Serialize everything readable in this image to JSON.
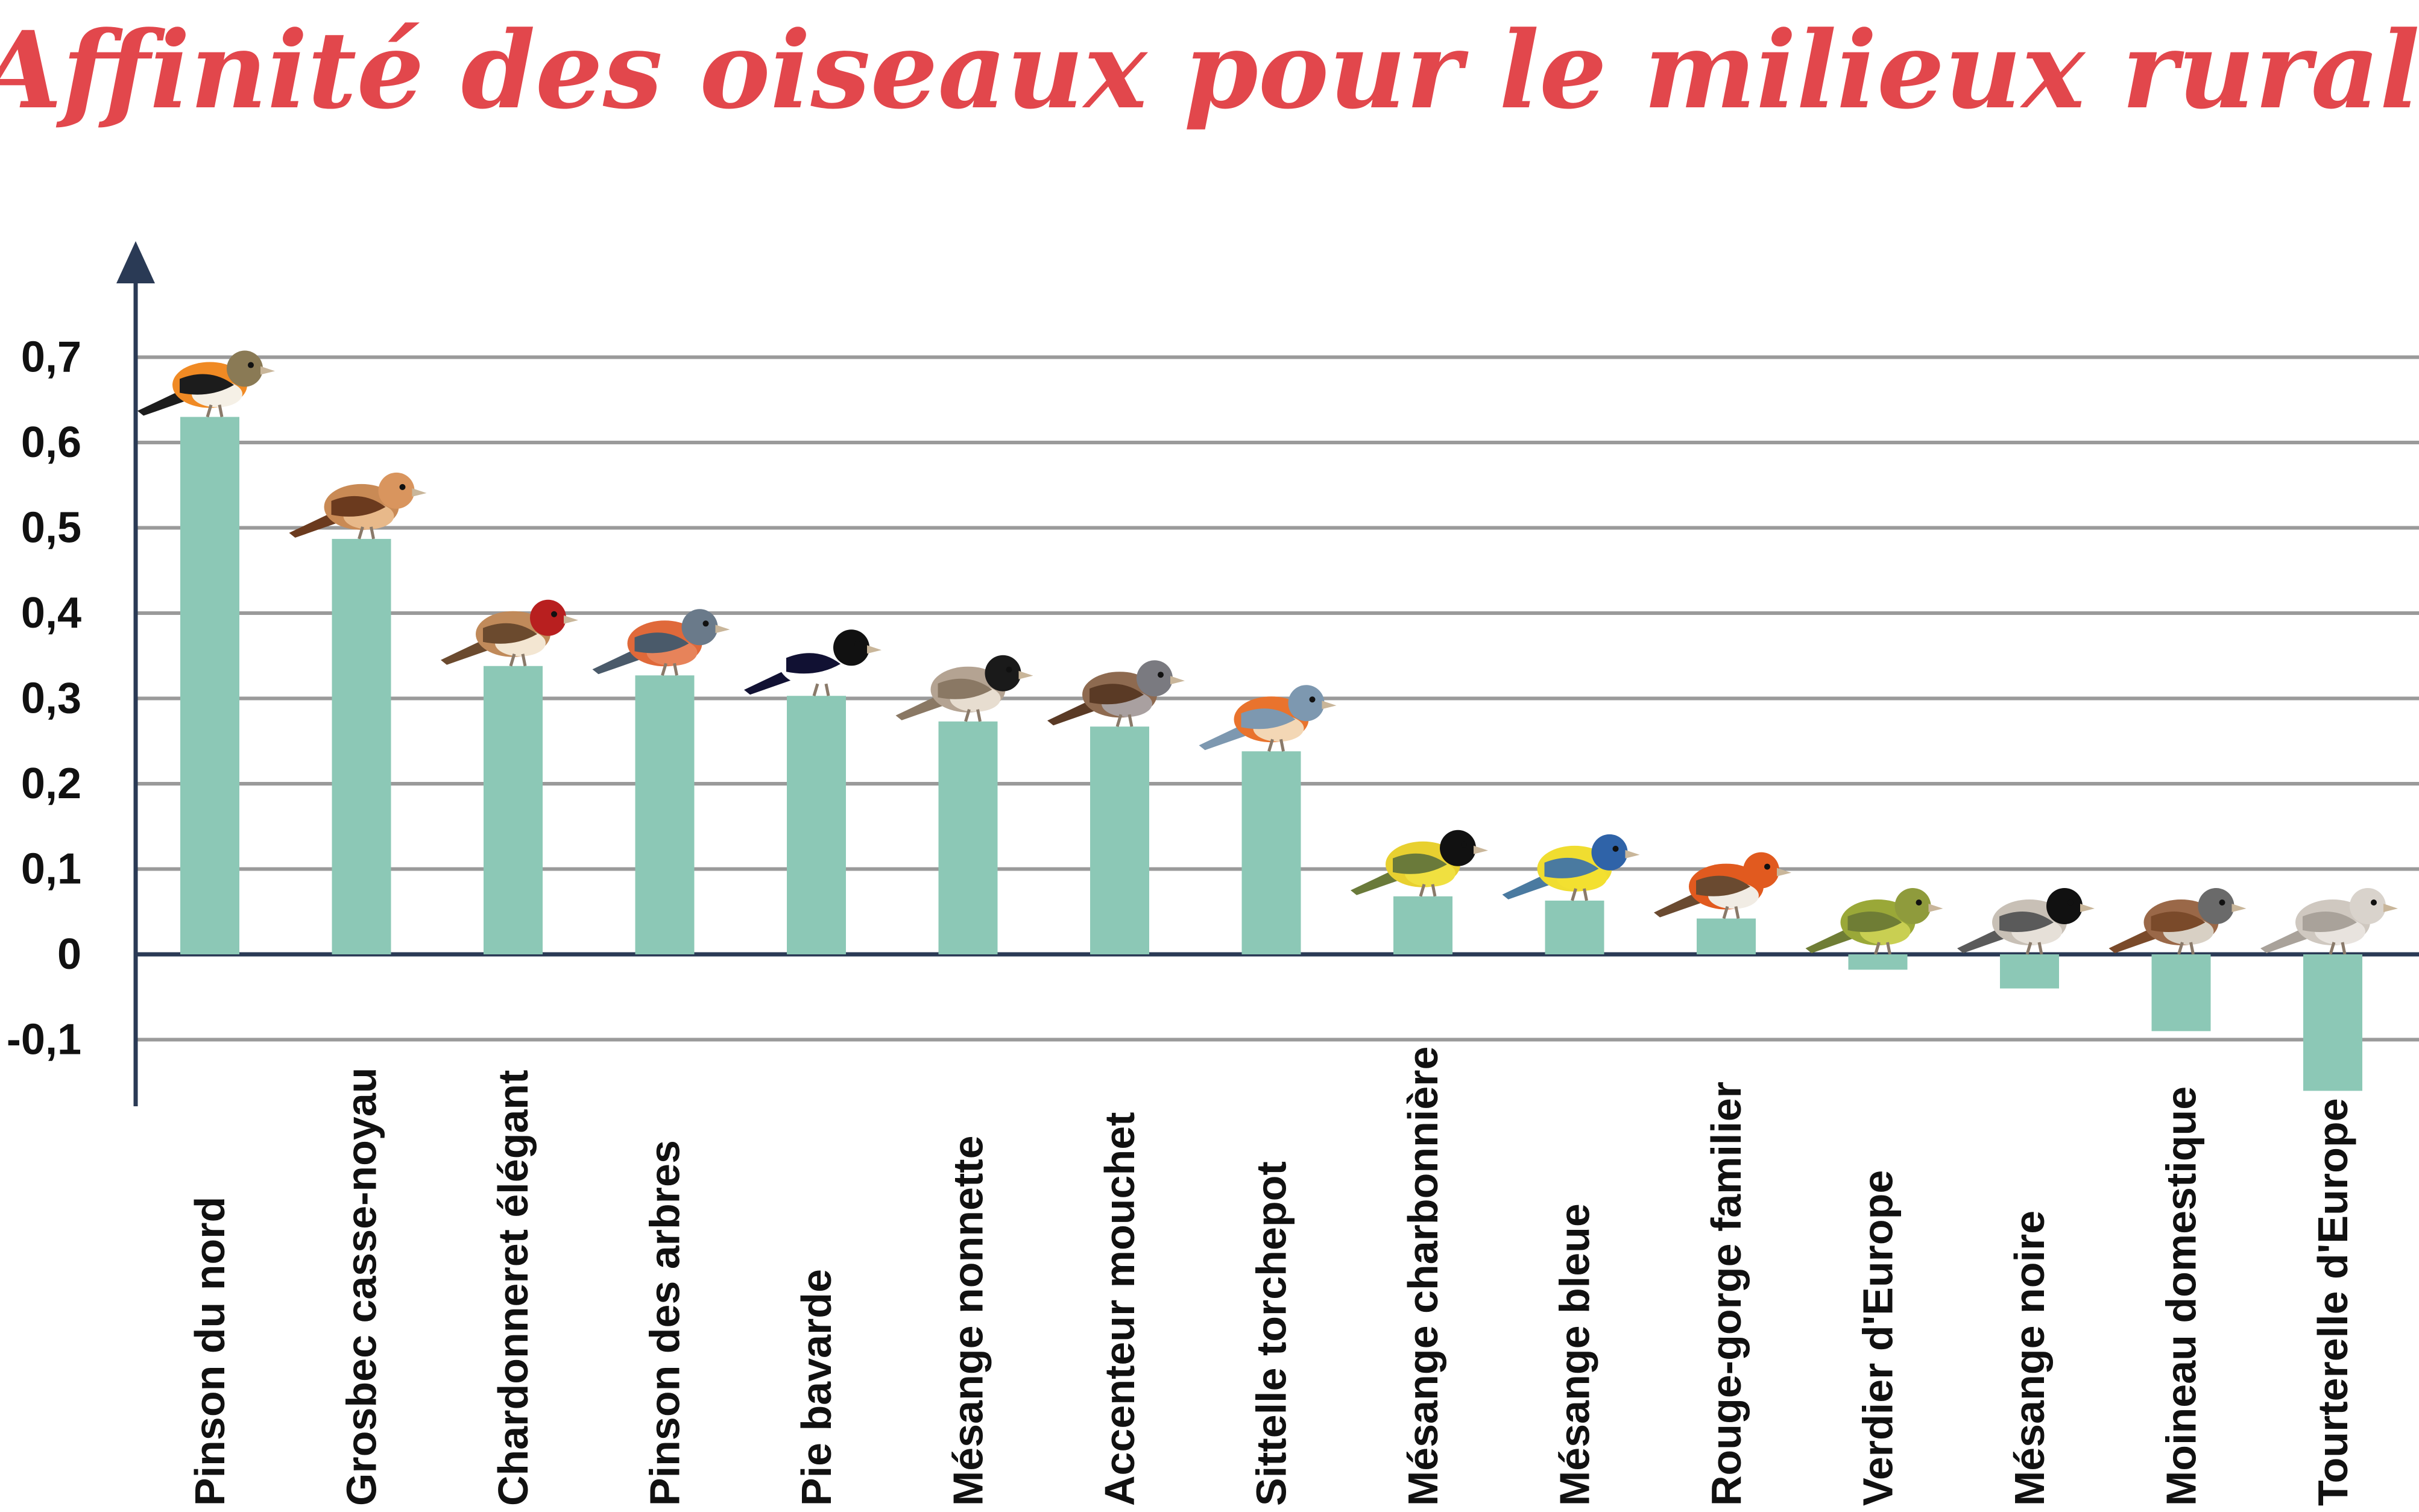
{
  "chart_data": {
    "type": "bar",
    "title": "Affinité des oiseaux pour le milieux rural",
    "xlabel": "",
    "ylabel": "",
    "ylim": [
      -0.18,
      0.83
    ],
    "yticks": [
      "0,7",
      "0,6",
      "0,5",
      "0,4",
      "0,3",
      "0,2",
      "0,1",
      "0",
      "-0,1"
    ],
    "ytick_values": [
      0.7,
      0.6,
      0.5,
      0.4,
      0.3,
      0.2,
      0.1,
      0,
      -0.1
    ],
    "grid": true,
    "bar_color": "#8cc8b6",
    "categories": [
      "Pinson du nord",
      "Grosbec casse-noyau",
      "Chardonneret élégant",
      "Pinson des arbres",
      "Pie bavarde",
      "Mésange nonnette",
      "Accenteur mouchet",
      "Sittelle torchepot",
      "Mésange charbonnière",
      "Mésange bleue",
      "Rouge-gorge familier",
      "Verdier d'Europe",
      "Mésange noire",
      "Moineau domestique",
      "Tourterelle d'Europe"
    ],
    "values": [
      0.63,
      0.487,
      0.338,
      0.327,
      0.303,
      0.273,
      0.267,
      0.238,
      0.068,
      0.063,
      0.042,
      -0.018,
      -0.04,
      -0.09,
      -0.16
    ],
    "bird_icons": [
      "brambling-icon",
      "hawfinch-icon",
      "goldfinch-icon",
      "chaffinch-icon",
      "magpie-icon",
      "marsh-tit-icon",
      "dunnock-icon",
      "nuthatch-icon",
      "great-tit-icon",
      "blue-tit-icon",
      "robin-icon",
      "greenfinch-icon",
      "coal-tit-icon",
      "house-sparrow-icon",
      "turtle-dove-icon"
    ]
  }
}
